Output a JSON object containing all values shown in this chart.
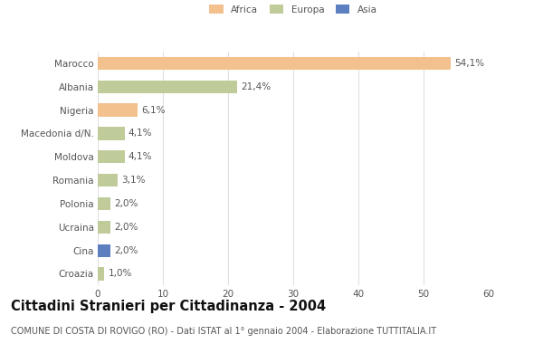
{
  "categories": [
    "Marocco",
    "Albania",
    "Nigeria",
    "Macedonia d/N.",
    "Moldova",
    "Romania",
    "Polonia",
    "Ucraina",
    "Cina",
    "Croazia"
  ],
  "values": [
    54.1,
    21.4,
    6.1,
    4.1,
    4.1,
    3.1,
    2.0,
    2.0,
    2.0,
    1.0
  ],
  "continents": [
    "Africa",
    "Europa",
    "Africa",
    "Europa",
    "Europa",
    "Europa",
    "Europa",
    "Europa",
    "Asia",
    "Europa"
  ],
  "labels": [
    "54,1%",
    "21,4%",
    "6,1%",
    "4,1%",
    "4,1%",
    "3,1%",
    "2,0%",
    "2,0%",
    "2,0%",
    "1,0%"
  ],
  "colors": {
    "Africa": "#F2C18D",
    "Europa": "#BFCC9A",
    "Asia": "#5B7FBF"
  },
  "legend_labels": [
    "Africa",
    "Europa",
    "Asia"
  ],
  "legend_colors": [
    "#F2C18D",
    "#BFCC9A",
    "#5B7FBF"
  ],
  "xlim": [
    0,
    60
  ],
  "xticks": [
    0,
    10,
    20,
    30,
    40,
    50,
    60
  ],
  "title": "Cittadini Stranieri per Cittadinanza - 2004",
  "subtitle": "COMUNE DI COSTA DI ROVIGO (RO) - Dati ISTAT al 1° gennaio 2004 - Elaborazione TUTTITALIA.IT",
  "bg_color": "#FFFFFF",
  "plot_bg_color": "#FFFFFF",
  "bar_height": 0.55,
  "label_fontsize": 7.5,
  "tick_fontsize": 7.5,
  "title_fontsize": 10.5,
  "subtitle_fontsize": 7.0,
  "grid_color": "#E0E0E0"
}
